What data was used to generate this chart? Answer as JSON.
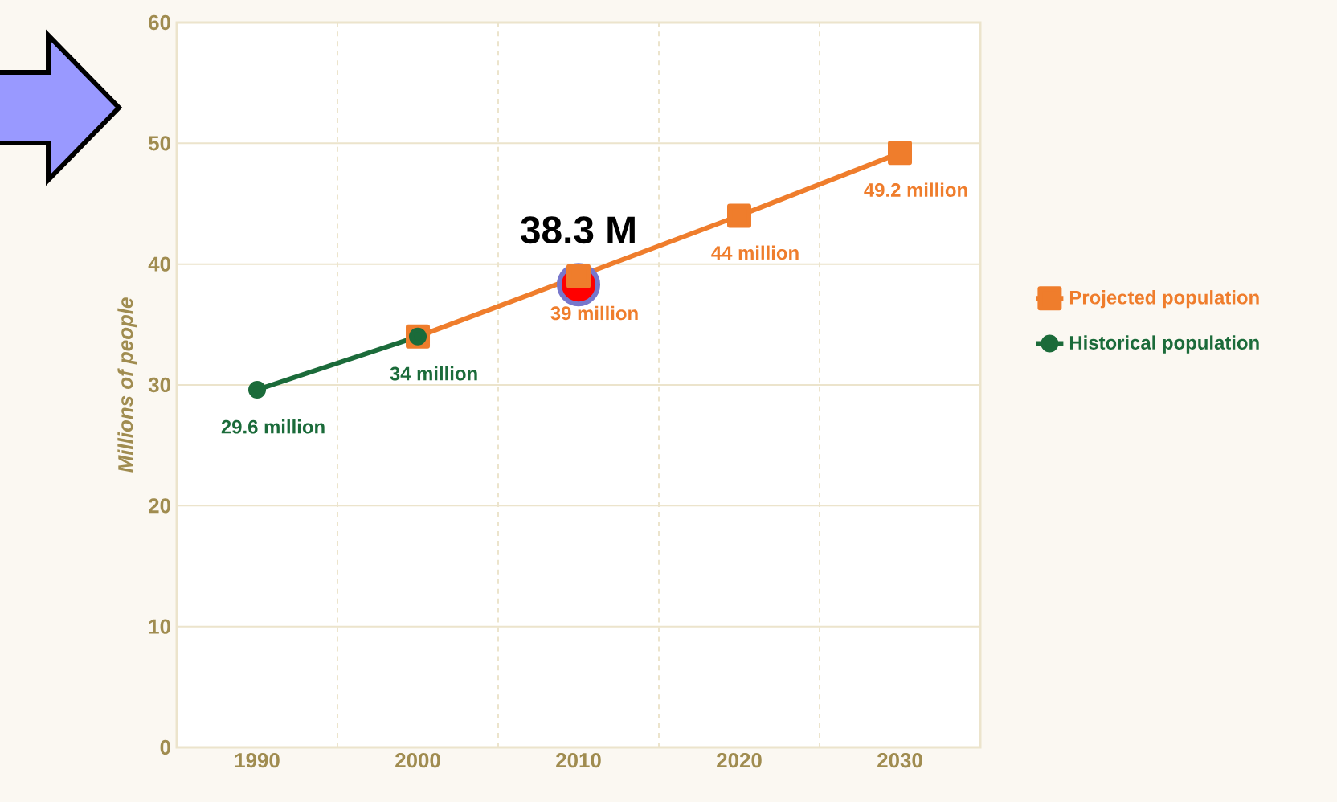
{
  "chart_data": {
    "type": "line",
    "ylabel": "Millions of people",
    "categories": [
      "1990",
      "2000",
      "2010",
      "2020",
      "2030"
    ],
    "ylim": [
      0,
      60
    ],
    "yticks": [
      0,
      10,
      20,
      30,
      40,
      50,
      60
    ],
    "grid": true,
    "legend": "right",
    "series": [
      {
        "name": "Projected population",
        "color": "#ef7d2c",
        "marker": "square",
        "values": [
          null,
          34,
          39,
          44,
          49.2
        ],
        "value_labels": [
          null,
          null,
          "39 million",
          "44 million",
          "49.2 million"
        ]
      },
      {
        "name": "Historical population",
        "color": "#1b6b3a",
        "marker": "circle",
        "values": [
          29.6,
          34,
          null,
          null,
          null
        ],
        "value_labels": [
          "29.6 million",
          "34 million",
          null,
          null,
          null
        ]
      },
      {
        "type": "scatter",
        "color": "#ff0000",
        "marker": "circle",
        "values": [
          null,
          null,
          38.3,
          null,
          null
        ],
        "value_labels": [
          null,
          null,
          "38.3 M",
          null,
          null
        ]
      }
    ]
  }
}
